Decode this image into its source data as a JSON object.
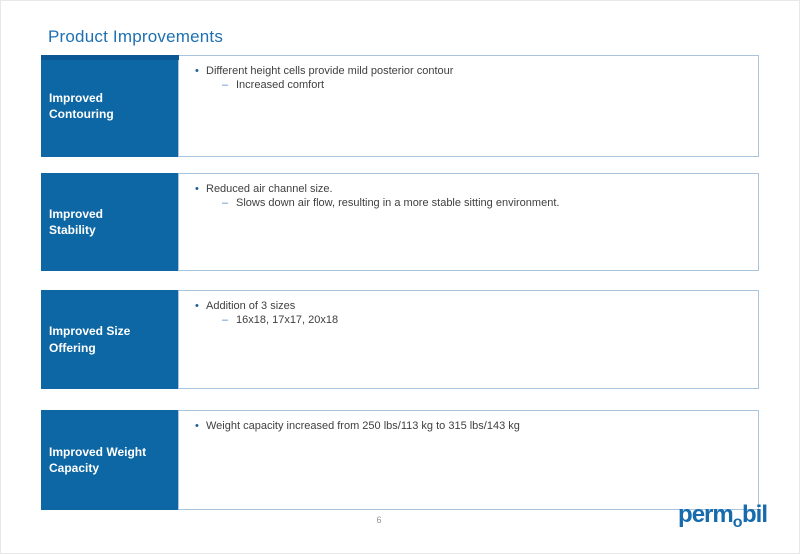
{
  "slide": {
    "title": "Product Improvements",
    "page_number": "6",
    "logo": {
      "part1": "perm",
      "part2": "o",
      "part3": "bil"
    },
    "markers": {
      "bullet": "•",
      "sub_bullet": "–"
    },
    "colors": {
      "label_box_blue": "#0d67a4",
      "title_blue": "#1e70b2",
      "accent_bar_blue": "#0a5796",
      "content_border_blue": "#a9c4dc",
      "body_text": "#3f3f3f",
      "logo_blue": "#166bad"
    },
    "rows": [
      {
        "label": "Improved\nContouring",
        "bullet": "Different height cells provide mild posterior contour",
        "sub": "Increased comfort"
      },
      {
        "label": "Improved\nStability",
        "bullet": "Reduced air channel size.",
        "sub": "Slows down air flow, resulting in a more stable sitting environment."
      },
      {
        "label": "Improved Size\nOffering",
        "bullet": "Addition of 3 sizes",
        "sub": "16x18, 17x17, 20x18"
      },
      {
        "label": "Improved Weight\nCapacity",
        "bullet": "Weight capacity increased from 250 lbs/113 kg to 315 lbs/143 kg",
        "sub": null
      }
    ]
  }
}
